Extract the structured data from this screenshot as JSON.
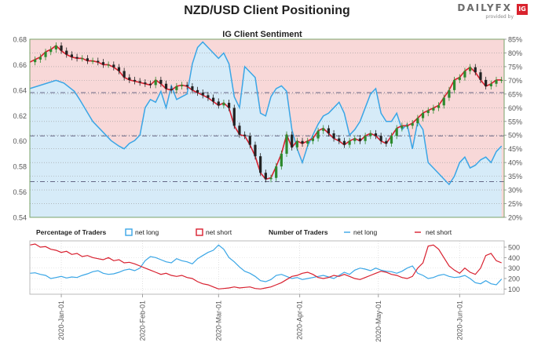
{
  "header": {
    "title": "NZD/USD Client Positioning",
    "logo_text": "DAILYFX",
    "logo_sub": "provided by",
    "logo_badge": "IG"
  },
  "colors": {
    "net_long": "#3aa6e6",
    "net_short": "#d8202f",
    "long_fill": "#d6ebf8",
    "short_fill": "#f8d8d8",
    "candle_up": "#2d8a2d",
    "candle_down": "#222222",
    "grid": "#999999",
    "ref_line": "#555577"
  },
  "chart_data": [
    {
      "type": "line",
      "title": "IG Client Sentiment",
      "xlabel": "",
      "ylabel": "",
      "yleft_label_ticks": [
        "0.54",
        "0.56",
        "0.58",
        "0.60",
        "0.62",
        "0.64",
        "0.66",
        "0.68"
      ],
      "ylim_left": [
        0.54,
        0.68
      ],
      "yright_label_ticks": [
        "20%",
        "25%",
        "30%",
        "35%",
        "40%",
        "45%",
        "50%",
        "55%",
        "60%",
        "65%",
        "70%",
        "75%",
        "80%",
        "85%"
      ],
      "ylim_right": [
        20,
        85
      ],
      "x_tick_labels": [
        "2020-Jan-01",
        "2020-Feb-01",
        "2020-Mar-01",
        "2020-Apr-01",
        "2020-May-01",
        "2020-Jun-01"
      ],
      "x_tick_days": [
        0,
        31,
        60,
        91,
        121,
        152
      ],
      "xlim_days": [
        -12,
        169
      ],
      "reference_lines": [
        0.604,
        0.568,
        0.638
      ],
      "series": [
        {
          "kind": "percent_net_long",
          "days": [
            -12,
            -2,
            1,
            5,
            7,
            12,
            15,
            17,
            19,
            22,
            24,
            26,
            28,
            30,
            31,
            32,
            34,
            36,
            38,
            40,
            42,
            44,
            46,
            48,
            50,
            52,
            54,
            56,
            58,
            60,
            62,
            64,
            66,
            68,
            70,
            72,
            74,
            76,
            78,
            80,
            82,
            84,
            86,
            88,
            90,
            92,
            94,
            96,
            98,
            100,
            102,
            104,
            106,
            108,
            110,
            112,
            114,
            116,
            118,
            120,
            122,
            124,
            126,
            128,
            130,
            132,
            134,
            136,
            138,
            140,
            142,
            144,
            146,
            148,
            150,
            152,
            154,
            156,
            158,
            160,
            162,
            164,
            166,
            168
          ],
          "values": [
            67,
            70,
            69,
            66,
            63,
            55,
            52,
            50,
            48,
            46,
            45,
            47,
            48,
            50,
            55,
            60,
            63,
            62,
            66,
            60,
            68,
            63,
            64,
            65,
            76,
            82,
            84,
            82,
            80,
            78,
            80,
            76,
            64,
            60,
            75,
            73,
            71,
            58,
            57,
            64,
            67,
            68,
            66,
            52,
            45,
            40,
            46,
            50,
            54,
            57,
            58,
            60,
            62,
            58,
            50,
            52,
            55,
            60,
            65,
            67,
            58,
            55,
            55,
            58,
            52,
            54,
            45,
            55,
            52,
            40,
            38,
            36,
            34,
            32,
            35,
            40,
            42,
            38,
            39,
            41,
            42,
            40,
            44,
            46
          ]
        },
        {
          "kind": "price_close",
          "days": [
            -12,
            -10,
            -8,
            -6,
            -4,
            -2,
            0,
            2,
            4,
            6,
            8,
            10,
            12,
            14,
            16,
            18,
            20,
            22,
            24,
            26,
            28,
            30,
            32,
            34,
            36,
            38,
            40,
            42,
            44,
            46,
            48,
            50,
            52,
            54,
            56,
            58,
            60,
            62,
            64,
            66,
            68,
            70,
            72,
            74,
            76,
            78,
            80,
            82,
            84,
            86,
            88,
            90,
            92,
            94,
            96,
            98,
            100,
            102,
            104,
            106,
            108,
            110,
            112,
            114,
            116,
            118,
            120,
            122,
            124,
            126,
            128,
            130,
            132,
            134,
            136,
            138,
            140,
            142,
            144,
            146,
            148,
            150,
            152,
            154,
            156,
            158,
            160,
            162,
            164,
            166,
            168
          ],
          "values": [
            0.662,
            0.664,
            0.666,
            0.67,
            0.672,
            0.675,
            0.671,
            0.668,
            0.666,
            0.665,
            0.665,
            0.663,
            0.663,
            0.662,
            0.66,
            0.66,
            0.658,
            0.655,
            0.65,
            0.648,
            0.647,
            0.646,
            0.645,
            0.644,
            0.648,
            0.645,
            0.641,
            0.64,
            0.643,
            0.644,
            0.643,
            0.64,
            0.638,
            0.636,
            0.634,
            0.631,
            0.628,
            0.63,
            0.626,
            0.612,
            0.605,
            0.604,
            0.597,
            0.588,
            0.575,
            0.57,
            0.571,
            0.58,
            0.59,
            0.605,
            0.595,
            0.6,
            0.598,
            0.6,
            0.602,
            0.608,
            0.61,
            0.606,
            0.602,
            0.6,
            0.597,
            0.6,
            0.602,
            0.6,
            0.604,
            0.606,
            0.604,
            0.6,
            0.598,
            0.604,
            0.61,
            0.612,
            0.612,
            0.614,
            0.618,
            0.622,
            0.624,
            0.626,
            0.628,
            0.634,
            0.64,
            0.648,
            0.65,
            0.655,
            0.658,
            0.654,
            0.648,
            0.643,
            0.645,
            0.648,
            0.648
          ]
        }
      ]
    },
    {
      "type": "line",
      "title": "",
      "y_tick_labels": [
        "100",
        "200",
        "300",
        "400",
        "500"
      ],
      "ylim": [
        50,
        560
      ],
      "legend": {
        "pct_title": "Percentage of Traders",
        "pct_long": "net long",
        "pct_short": "net short",
        "num_title": "Number of Traders",
        "num_long": "net long",
        "num_short": "net short"
      },
      "series": [
        {
          "kind": "net_long_traders",
          "days": [
            -12,
            -10,
            -8,
            -6,
            -4,
            -2,
            0,
            2,
            4,
            6,
            8,
            10,
            12,
            14,
            16,
            18,
            20,
            22,
            24,
            26,
            28,
            30,
            32,
            34,
            36,
            38,
            40,
            42,
            44,
            46,
            48,
            50,
            52,
            54,
            56,
            58,
            60,
            62,
            64,
            66,
            68,
            70,
            72,
            74,
            76,
            78,
            80,
            82,
            84,
            86,
            88,
            90,
            92,
            94,
            96,
            98,
            100,
            102,
            104,
            106,
            108,
            110,
            112,
            114,
            116,
            118,
            120,
            122,
            124,
            126,
            128,
            130,
            132,
            134,
            136,
            138,
            140,
            142,
            144,
            146,
            148,
            150,
            152,
            154,
            156,
            158,
            160,
            162,
            164,
            166,
            168
          ],
          "values": [
            250,
            255,
            240,
            230,
            200,
            210,
            220,
            205,
            215,
            210,
            230,
            245,
            265,
            275,
            250,
            240,
            245,
            260,
            280,
            290,
            275,
            300,
            370,
            410,
            400,
            380,
            360,
            350,
            390,
            370,
            360,
            340,
            390,
            420,
            450,
            470,
            520,
            480,
            400,
            360,
            310,
            270,
            250,
            220,
            180,
            170,
            190,
            230,
            240,
            220,
            200,
            210,
            190,
            200,
            210,
            220,
            230,
            215,
            200,
            230,
            260,
            240,
            280,
            300,
            290,
            275,
            300,
            280,
            270,
            265,
            250,
            270,
            300,
            320,
            250,
            230,
            200,
            210,
            230,
            240,
            220,
            210,
            215,
            230,
            200,
            160,
            150,
            180,
            150,
            140,
            195
          ]
        },
        {
          "kind": "net_short_traders",
          "days": [
            -12,
            -10,
            -8,
            -6,
            -4,
            -2,
            0,
            2,
            4,
            6,
            8,
            10,
            12,
            14,
            16,
            18,
            20,
            22,
            24,
            26,
            28,
            30,
            32,
            34,
            36,
            38,
            40,
            42,
            44,
            46,
            48,
            50,
            52,
            54,
            56,
            58,
            60,
            62,
            64,
            66,
            68,
            70,
            72,
            74,
            76,
            78,
            80,
            82,
            84,
            86,
            88,
            90,
            92,
            94,
            96,
            98,
            100,
            102,
            104,
            106,
            108,
            110,
            112,
            114,
            116,
            118,
            120,
            122,
            124,
            126,
            128,
            130,
            132,
            134,
            136,
            138,
            140,
            142,
            144,
            146,
            148,
            150,
            152,
            154,
            156,
            158,
            160,
            162,
            164,
            166,
            168
          ],
          "values": [
            520,
            530,
            500,
            505,
            480,
            470,
            450,
            460,
            430,
            440,
            410,
            420,
            400,
            390,
            380,
            400,
            370,
            380,
            350,
            355,
            340,
            320,
            300,
            280,
            260,
            240,
            250,
            230,
            220,
            230,
            210,
            200,
            170,
            150,
            140,
            120,
            100,
            105,
            110,
            120,
            110,
            115,
            120,
            105,
            100,
            110,
            120,
            140,
            160,
            190,
            220,
            230,
            250,
            260,
            240,
            210,
            200,
            210,
            230,
            220,
            240,
            220,
            200,
            190,
            210,
            230,
            250,
            270,
            260,
            240,
            230,
            210,
            200,
            220,
            300,
            350,
            510,
            520,
            480,
            400,
            320,
            280,
            250,
            300,
            260,
            240,
            300,
            420,
            440,
            370,
            350
          ]
        }
      ]
    }
  ]
}
